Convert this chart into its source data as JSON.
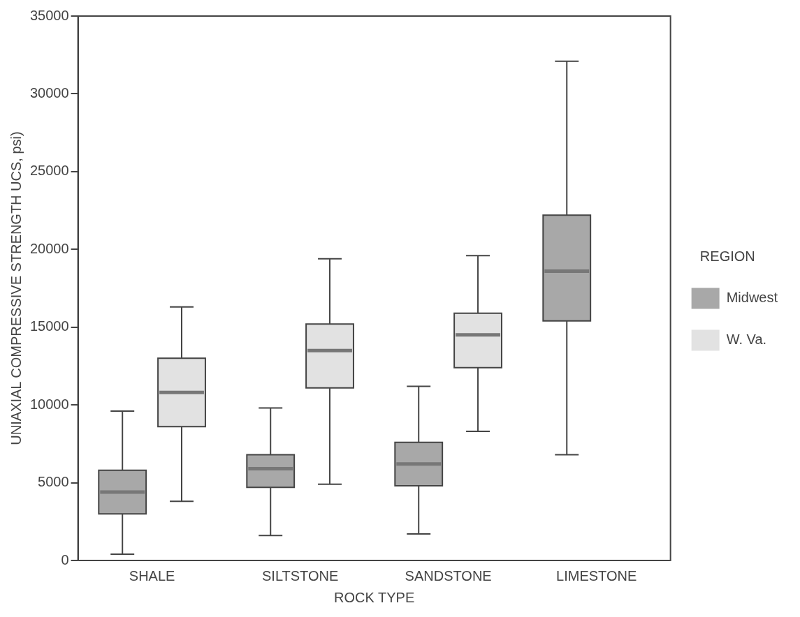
{
  "chart_data": {
    "type": "box",
    "xlabel": "ROCK TYPE",
    "ylabel": "UNIAXIAL COMPRESSIVE STRENGTH UCS, psi)",
    "legend_title": "REGION",
    "legend": "right",
    "grid": false,
    "categories": [
      "SHALE",
      "SILTSTONE",
      "SANDSTONE",
      "LIMESTONE"
    ],
    "ylim": [
      0,
      35000
    ],
    "yticks": [
      0,
      5000,
      10000,
      15000,
      20000,
      25000,
      30000,
      35000
    ],
    "series": [
      {
        "name": "Midwest",
        "color": "#a8a8a8",
        "boxes": [
          {
            "low": 400,
            "q1": 3000,
            "median": 4400,
            "q3": 5800,
            "high": 9600
          },
          {
            "low": 1600,
            "q1": 4700,
            "median": 5900,
            "q3": 6800,
            "high": 9800
          },
          {
            "low": 1700,
            "q1": 4800,
            "median": 6200,
            "q3": 7600,
            "high": 11200
          },
          {
            "low": 6800,
            "q1": 15400,
            "median": 18600,
            "q3": 22200,
            "high": 32100
          }
        ]
      },
      {
        "name": "W. Va.",
        "color": "#e2e2e2",
        "boxes": [
          {
            "low": 3800,
            "q1": 8600,
            "median": 10800,
            "q3": 13000,
            "high": 16300
          },
          {
            "low": 4900,
            "q1": 11100,
            "median": 13500,
            "q3": 15200,
            "high": 19400
          },
          {
            "low": 8300,
            "q1": 12400,
            "median": 14500,
            "q3": 15900,
            "high": 19600
          },
          null
        ]
      }
    ]
  }
}
